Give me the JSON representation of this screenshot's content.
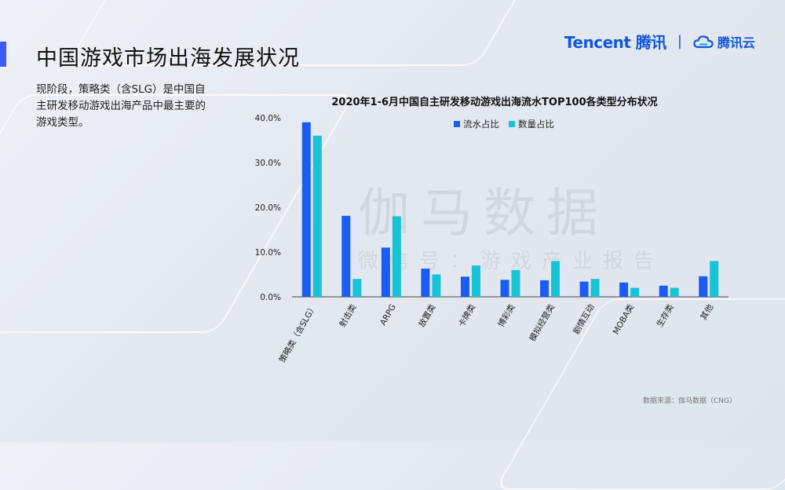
{
  "page": {
    "title": "中国游戏市场出海发展状况",
    "description": "现阶段，策略类（含SLG）是中国自主研发移动游戏出海产品中最主要的游戏类型。",
    "source": "数据来源：伽马数据（CNG）",
    "watermark_main": "伽马数据",
    "watermark_sub": "微信号：游戏产业报告"
  },
  "logos": {
    "tencent_text": "Tencent 腾讯",
    "separator": "|",
    "cloud_text": "腾讯云",
    "cloud_icon": "cloud-icon"
  },
  "colors": {
    "series1": "#1a5cf5",
    "series2": "#17c4d6",
    "accent": "#3b5bff"
  },
  "chart_data": {
    "type": "bar",
    "title": "2020年1-6月中国自主研发移动游戏出海流水TOP100各类型分布状况",
    "categories": [
      "策略类（含SLG）",
      "射击类",
      "ARPG",
      "放置类",
      "卡牌类",
      "博彩类",
      "模拟经营类",
      "剧情互动",
      "MOBA类",
      "生存类",
      "其他"
    ],
    "series": [
      {
        "name": "流水占比",
        "values": [
          39.0,
          18.1,
          11.0,
          6.3,
          4.5,
          3.8,
          3.7,
          3.4,
          3.2,
          2.5,
          4.6
        ]
      },
      {
        "name": "数量占比",
        "values": [
          36.0,
          4.0,
          18.0,
          5.0,
          7.0,
          6.0,
          8.0,
          4.0,
          2.0,
          2.0,
          8.0
        ]
      }
    ],
    "ylim": [
      0,
      40
    ],
    "yticks": [
      "0.0%",
      "10.0%",
      "20.0%",
      "30.0%",
      "40.0%"
    ],
    "legend_position": "top-center",
    "grid": false
  }
}
